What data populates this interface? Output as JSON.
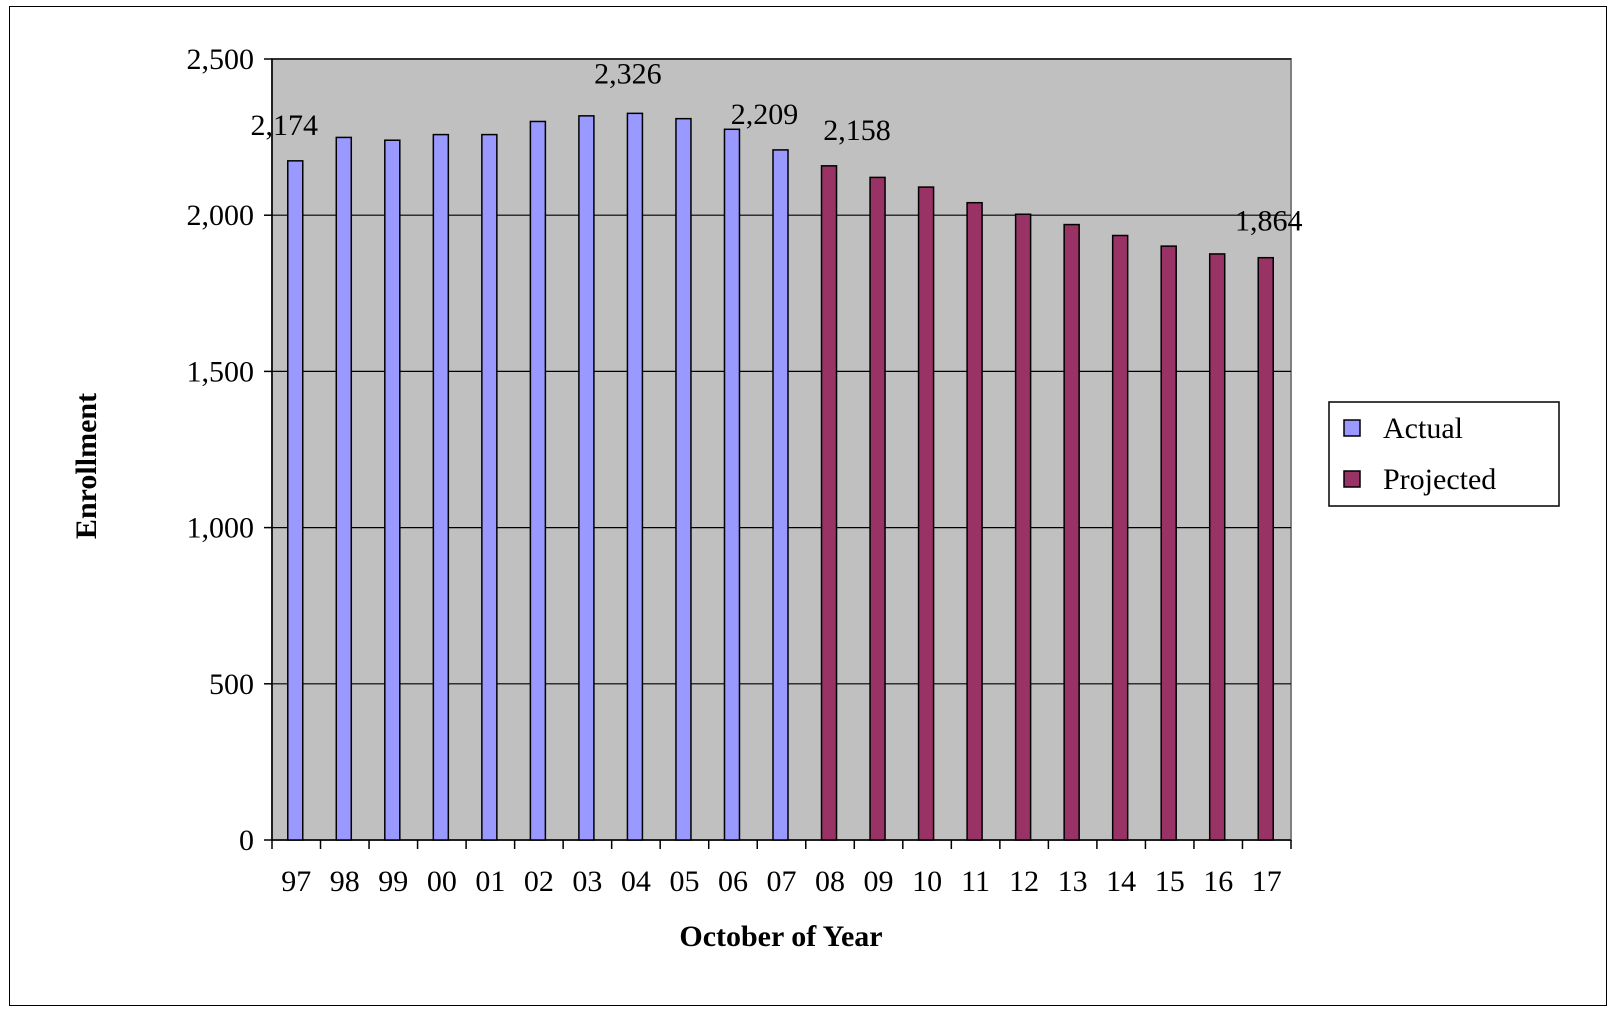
{
  "chart_data": {
    "type": "bar",
    "title": "",
    "xlabel": "October of Year",
    "ylabel": "Enrollment",
    "ylim": [
      0,
      2500
    ],
    "yticks": [
      0,
      500,
      1000,
      1500,
      2000,
      2500
    ],
    "ytick_labels": [
      "0",
      "500",
      "1,000",
      "1,500",
      "2,000",
      "2,500"
    ],
    "categories": [
      "97",
      "98",
      "99",
      "00",
      "01",
      "02",
      "03",
      "04",
      "05",
      "06",
      "07",
      "08",
      "09",
      "10",
      "11",
      "12",
      "13",
      "14",
      "15",
      "16",
      "17"
    ],
    "series": [
      {
        "name": "Actual",
        "color": "#9999ff",
        "values": [
          2174,
          2249,
          2240,
          2258,
          2258,
          2300,
          2318,
          2326,
          2309,
          2275,
          2209,
          null,
          null,
          null,
          null,
          null,
          null,
          null,
          null,
          null,
          null
        ]
      },
      {
        "name": "Projected",
        "color": "#993366",
        "values": [
          null,
          null,
          null,
          null,
          null,
          null,
          null,
          null,
          null,
          null,
          null,
          2158,
          2121,
          2090,
          2040,
          2003,
          1970,
          1935,
          1901,
          1876,
          1864
        ]
      }
    ],
    "data_labels": [
      {
        "series": 0,
        "index": 0,
        "text": "2,174"
      },
      {
        "series": 0,
        "index": 7,
        "text": "2,326"
      },
      {
        "series": 0,
        "index": 10,
        "text": "2,209"
      },
      {
        "series": 1,
        "index": 11,
        "text": "2,158"
      },
      {
        "series": 1,
        "index": 20,
        "text": "1,864"
      }
    ],
    "plot_background": "#c0c0c0",
    "grid": true,
    "legend_position": "right"
  }
}
